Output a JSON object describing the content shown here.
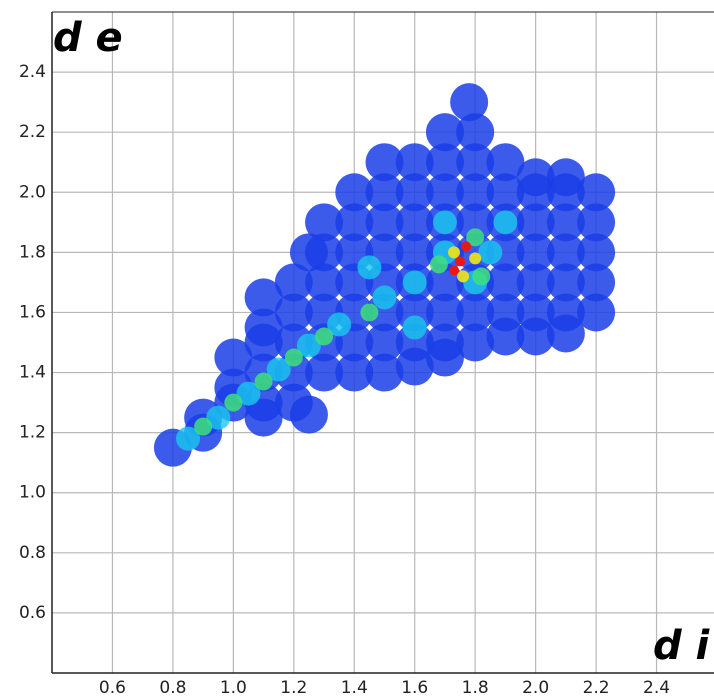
{
  "chart_data": {
    "type": "scatter",
    "x_label": "d i",
    "y_label": "d e",
    "xlim": [
      0.4,
      2.6
    ],
    "ylim": [
      0.4,
      2.6
    ],
    "xticks": [
      0.6,
      0.8,
      {
        "value": 1,
        "label": "1.0"
      },
      1.2,
      1.4,
      1.6,
      1.8,
      {
        "value": 2,
        "label": "2.0"
      },
      2.2,
      2.4
    ],
    "yticks": [
      0.6,
      0.8,
      {
        "value": 1,
        "label": "1.0"
      },
      1.2,
      1.4,
      1.6,
      1.8,
      {
        "value": 2,
        "label": "2.0"
      },
      2.2,
      2.4
    ],
    "grid": true,
    "series": [
      {
        "color": "#1a3ee8",
        "x": [
          1.1,
          1.1,
          1.2,
          1.25,
          1.2,
          1.3,
          1.4,
          1.5,
          1.6,
          1.7,
          1.2,
          1.3,
          1.4,
          1.5,
          1.6,
          1.7,
          1.8,
          1.9,
          2.0,
          2.1,
          1.2,
          1.3,
          1.4,
          1.5,
          1.6,
          1.7,
          1.8,
          1.9,
          2.0,
          2.1,
          2.2,
          1.2,
          1.3,
          1.4,
          1.5,
          1.6,
          1.7,
          1.8,
          1.9,
          2.0,
          2.1,
          2.2,
          1.25,
          1.3,
          1.4,
          1.5,
          1.6,
          1.7,
          1.8,
          1.9,
          2.0,
          2.1,
          2.2,
          1.3,
          1.4,
          1.5,
          1.6,
          1.7,
          1.8,
          1.9,
          2.0,
          2.1,
          2.2,
          1.4,
          1.5,
          1.6,
          1.7,
          1.8,
          1.9,
          2.0,
          2.1,
          2.2,
          1.5,
          1.6,
          1.7,
          1.8,
          1.9,
          2.0,
          2.1,
          1.7,
          1.8,
          1.78,
          0.8,
          0.9,
          0.9,
          1.0,
          1.0,
          1.1,
          1.1,
          1.0,
          1.1,
          1.1
        ],
        "values": [
          1.25,
          1.3,
          1.3,
          1.26,
          1.4,
          1.4,
          1.4,
          1.4,
          1.42,
          1.45,
          1.5,
          1.5,
          1.5,
          1.5,
          1.5,
          1.5,
          1.5,
          1.52,
          1.52,
          1.53,
          1.6,
          1.6,
          1.6,
          1.6,
          1.6,
          1.6,
          1.6,
          1.6,
          1.6,
          1.6,
          1.6,
          1.7,
          1.7,
          1.7,
          1.7,
          1.7,
          1.7,
          1.7,
          1.7,
          1.7,
          1.7,
          1.7,
          1.8,
          1.8,
          1.8,
          1.8,
          1.8,
          1.8,
          1.8,
          1.8,
          1.8,
          1.8,
          1.8,
          1.9,
          1.9,
          1.9,
          1.9,
          1.9,
          1.9,
          1.9,
          1.9,
          1.9,
          1.9,
          2.0,
          2.0,
          2.0,
          2.0,
          2.0,
          2.0,
          2.0,
          2.0,
          2.0,
          2.1,
          2.1,
          2.1,
          2.1,
          2.1,
          2.05,
          2.05,
          2.2,
          2.2,
          2.3,
          1.15,
          1.2,
          1.25,
          1.3,
          1.35,
          1.4,
          1.5,
          1.45,
          1.55,
          1.65
        ]
      },
      {
        "color": "#18c8ee",
        "x": [
          0.85,
          0.95,
          1.05,
          1.15,
          1.25,
          1.35,
          1.5,
          1.6,
          1.7,
          1.85,
          1.8,
          1.7,
          1.9,
          1.45,
          1.6
        ],
        "values": [
          1.18,
          1.25,
          1.33,
          1.41,
          1.49,
          1.56,
          1.65,
          1.7,
          1.8,
          1.8,
          1.7,
          1.9,
          1.9,
          1.75,
          1.55
        ]
      },
      {
        "color": "#3ee07a",
        "x": [
          0.9,
          1.0,
          1.1,
          1.2,
          1.3,
          1.45,
          1.8,
          1.82,
          1.68
        ],
        "values": [
          1.22,
          1.3,
          1.37,
          1.45,
          1.52,
          1.6,
          1.85,
          1.72,
          1.76
        ]
      },
      {
        "color": "#e8e020",
        "x": [
          1.73,
          1.8,
          1.76
        ],
        "values": [
          1.8,
          1.78,
          1.72
        ]
      },
      {
        "color": "#e81818",
        "x": [
          1.75,
          1.77,
          1.73
        ],
        "values": [
          1.77,
          1.82,
          1.74
        ]
      }
    ]
  }
}
